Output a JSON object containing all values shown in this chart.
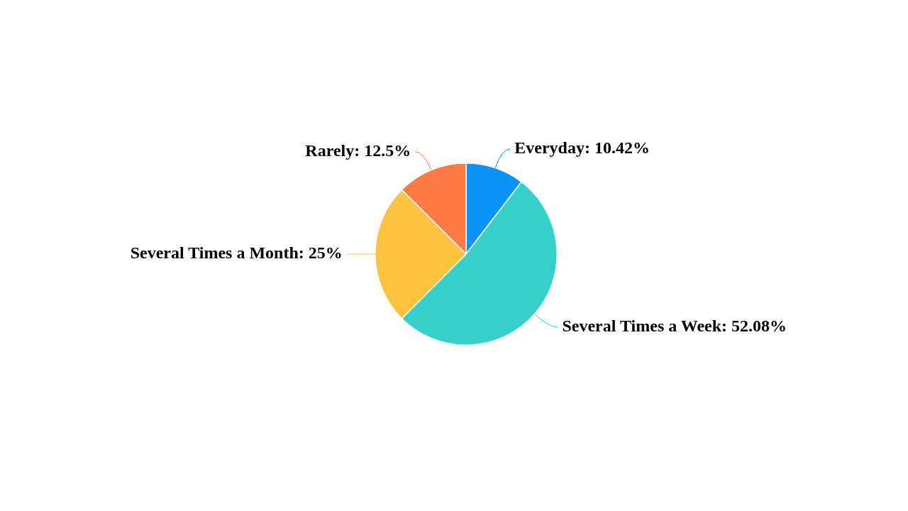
{
  "chart_data": {
    "type": "pie",
    "categories": [
      "Everyday",
      "Several Times a Week",
      "Several Times a Month",
      "Rarely"
    ],
    "values": [
      10.42,
      52.08,
      25,
      12.5
    ],
    "colors": [
      "#0b94f7",
      "#36cfc9",
      "#fec33f",
      "#ff7a45"
    ],
    "value_labels": [
      "10.42%",
      "52.08%",
      "25%",
      "12.5%"
    ],
    "legend": false
  }
}
